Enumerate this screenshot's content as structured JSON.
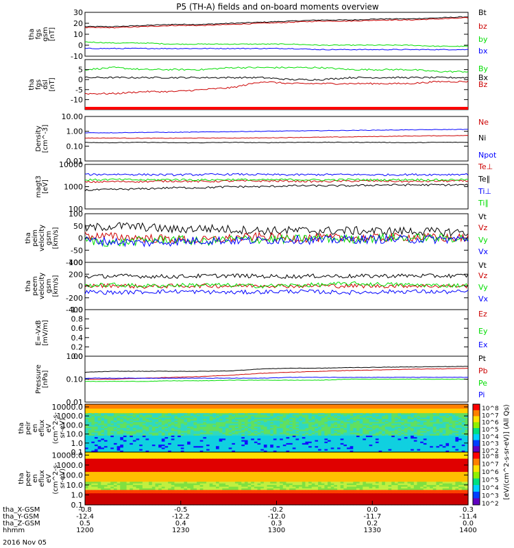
{
  "title": "P5 (TH-A) fields and on-board moments overview",
  "chart_data": [
    {
      "type": "line",
      "panel": "fgs-gsm",
      "ylabel": [
        "tha",
        "fgs",
        "gsm",
        "[nT]"
      ],
      "ylim": [
        -10,
        30
      ],
      "yticks": [
        "30",
        "20",
        "10",
        "0",
        "-10"
      ],
      "series": [
        {
          "name": "Bt",
          "color": "#000000",
          "values": [
            17,
            17,
            18,
            19,
            19,
            20,
            21,
            22,
            23,
            23,
            24,
            24,
            25,
            26
          ]
        },
        {
          "name": "bz",
          "color": "#cc0000",
          "values": [
            16,
            16,
            17,
            18,
            18,
            19,
            20,
            21,
            22,
            22,
            23,
            23,
            24,
            25
          ]
        },
        {
          "name": "by",
          "color": "#00dd00",
          "values": [
            3,
            2,
            2,
            1,
            1,
            1,
            1,
            1,
            0,
            0,
            0,
            0,
            -1,
            -1
          ]
        },
        {
          "name": "bx",
          "color": "#0000ff",
          "values": [
            -3,
            -3,
            -3,
            -3,
            -3,
            -3,
            -3,
            -3,
            -4,
            -4,
            -4,
            -4,
            -4,
            -4
          ]
        }
      ]
    },
    {
      "type": "line",
      "panel": "fgs-dsl",
      "ylabel": [
        "tha",
        "fgs",
        "dsl",
        "[nT]"
      ],
      "ylim": [
        -15,
        10
      ],
      "yticks": [
        "5",
        "0",
        "-5",
        "-10"
      ],
      "series": [
        {
          "name": "By",
          "color": "#00dd00",
          "values": [
            5,
            6,
            5,
            5,
            5,
            6,
            6,
            6,
            6,
            5,
            5,
            5,
            4,
            4
          ]
        },
        {
          "name": "Bx",
          "color": "#000000",
          "values": [
            1,
            1,
            1,
            1,
            1,
            1,
            1,
            0,
            0,
            1,
            1,
            1,
            1,
            1
          ]
        },
        {
          "name": "Bz",
          "color": "#cc0000",
          "values": [
            -7,
            -7,
            -6,
            -6,
            -5,
            -4,
            -1,
            -2,
            -2,
            -2,
            -2,
            -2,
            -1,
            -1
          ]
        }
      ]
    },
    {
      "type": "line",
      "panel": "density",
      "ylabel": [
        "Density",
        "[cm^-3]"
      ],
      "yscale": "log",
      "ylim": [
        0.01,
        10
      ],
      "yticks": [
        "10.00",
        "1.00",
        "0.10",
        "0.01"
      ],
      "series": [
        {
          "name": "Ne",
          "color": "#cc0000",
          "values": [
            0.35,
            0.35,
            0.34,
            0.34,
            0.35,
            0.35,
            0.36,
            0.38,
            0.4,
            0.42,
            0.45,
            0.48,
            0.5,
            0.52
          ]
        },
        {
          "name": "Ni",
          "color": "#000000",
          "values": [
            0.18,
            0.17,
            0.18,
            0.17,
            0.17,
            0.18,
            0.17,
            0.18,
            0.18,
            0.18,
            0.18,
            0.17,
            0.18,
            0.18
          ]
        },
        {
          "name": "Npot",
          "color": "#0000ff",
          "values": [
            0.8,
            0.8,
            0.85,
            0.85,
            0.9,
            0.95,
            1.0,
            1.05,
            1.1,
            1.15,
            1.2,
            1.25,
            1.3,
            1.35
          ]
        }
      ]
    },
    {
      "type": "line",
      "panel": "temperature",
      "ylabel": [
        "magt3",
        "[eV]"
      ],
      "yscale": "log",
      "ylim": [
        100,
        10000
      ],
      "yticks": [
        "10000",
        "1000",
        "100"
      ],
      "series": [
        {
          "name": "Te⊥",
          "color": "#cc0000",
          "values": [
            1600,
            1700,
            1700,
            1800,
            1700,
            1800,
            1800,
            1800,
            1700,
            1800,
            1800,
            1700,
            1800,
            1800
          ]
        },
        {
          "name": "Te∥",
          "color": "#000000",
          "values": [
            700,
            750,
            800,
            900,
            900,
            1000,
            1000,
            1100,
            1100,
            1100,
            1200,
            1200,
            1200,
            1200
          ]
        },
        {
          "name": "Ti⊥",
          "color": "#0000ff",
          "values": [
            3500,
            3600,
            3500,
            3400,
            3500,
            3600,
            3500,
            3400,
            3500,
            3500,
            3400,
            3500,
            3500,
            3600
          ]
        },
        {
          "name": "Ti∥",
          "color": "#00dd00",
          "values": [
            2000,
            2100,
            2000,
            2100,
            2000,
            2100,
            2000,
            2100,
            2000,
            2100,
            2000,
            2100,
            2000,
            2100
          ]
        }
      ]
    },
    {
      "type": "line",
      "panel": "ion-velocity",
      "ylabel": [
        "tha",
        "peim",
        "velocity",
        "gsm",
        "[km/s]"
      ],
      "ylim": [
        -100,
        100
      ],
      "yticks": [
        "100",
        "50",
        "0",
        "-50",
        "-100"
      ],
      "series": [
        {
          "name": "Vt",
          "color": "#000000",
          "values": [
            40,
            50,
            45,
            35,
            40,
            35,
            30,
            30,
            30,
            30,
            28,
            28,
            25,
            25
          ]
        },
        {
          "name": "Vz",
          "color": "#cc0000",
          "values": [
            10,
            5,
            0,
            -5,
            -10,
            0,
            5,
            0,
            0,
            0,
            0,
            5,
            0,
            0
          ]
        },
        {
          "name": "Vy",
          "color": "#00dd00",
          "values": [
            -10,
            -20,
            -10,
            -5,
            -15,
            -5,
            -5,
            -5,
            0,
            -5,
            0,
            0,
            0,
            0
          ]
        },
        {
          "name": "Vx",
          "color": "#0000ff",
          "values": [
            -10,
            -15,
            -20,
            -15,
            -10,
            -10,
            -10,
            -5,
            -10,
            -5,
            -5,
            -5,
            -5,
            -5
          ]
        }
      ]
    },
    {
      "type": "line",
      "panel": "electron-velocity",
      "ylabel": [
        "tha",
        "peem",
        "velocity",
        "gsm",
        "[km/s]"
      ],
      "ylim": [
        -400,
        400
      ],
      "yticks": [
        "400",
        "200",
        "0",
        "-200",
        "-400"
      ],
      "series": [
        {
          "name": "Vt",
          "color": "#000000",
          "values": [
            160,
            170,
            165,
            160,
            170,
            175,
            165,
            160,
            170,
            165,
            170,
            175,
            170,
            175
          ]
        },
        {
          "name": "Vz",
          "color": "#cc0000",
          "values": [
            0,
            10,
            -10,
            0,
            5,
            0,
            10,
            0,
            5,
            0,
            0,
            5,
            0,
            0
          ]
        },
        {
          "name": "Vy",
          "color": "#00dd00",
          "values": [
            10,
            20,
            0,
            10,
            20,
            10,
            0,
            10,
            20,
            40,
            30,
            20,
            10,
            10
          ]
        },
        {
          "name": "Vx",
          "color": "#0000ff",
          "values": [
            -100,
            -110,
            -100,
            -90,
            -100,
            -110,
            -100,
            -90,
            -100,
            -110,
            -100,
            -90,
            -100,
            -100
          ]
        }
      ]
    },
    {
      "type": "line",
      "panel": "efield",
      "ylabel": [
        "E=-VxB",
        "[mV/m]"
      ],
      "ylim": [
        0,
        1
      ],
      "yticks": [
        "1.0",
        "0.8",
        "0.6",
        "0.4",
        "0.2",
        "0.0"
      ],
      "series": [
        {
          "name": "Ez",
          "color": "#cc0000",
          "values": []
        },
        {
          "name": "Ey",
          "color": "#00dd00",
          "values": []
        },
        {
          "name": "Ex",
          "color": "#0000ff",
          "values": []
        }
      ]
    },
    {
      "type": "line",
      "panel": "pressure",
      "ylabel": [
        "Pressure",
        "[nPa]"
      ],
      "yscale": "log",
      "ylim": [
        0.01,
        1
      ],
      "yticks": [
        "1.00",
        "0.10",
        "0.01"
      ],
      "series": [
        {
          "name": "Pt",
          "color": "#000000",
          "values": [
            0.2,
            0.22,
            0.22,
            0.22,
            0.22,
            0.23,
            0.28,
            0.3,
            0.3,
            0.32,
            0.33,
            0.34,
            0.35,
            0.36
          ]
        },
        {
          "name": "Pb",
          "color": "#cc0000",
          "values": [
            0.1,
            0.1,
            0.11,
            0.12,
            0.13,
            0.15,
            0.18,
            0.2,
            0.22,
            0.24,
            0.25,
            0.27,
            0.28,
            0.3
          ]
        },
        {
          "name": "Pe",
          "color": "#00dd00",
          "values": [
            0.08,
            0.08,
            0.08,
            0.085,
            0.085,
            0.09,
            0.09,
            0.09,
            0.09,
            0.1,
            0.1,
            0.1,
            0.1,
            0.1
          ]
        },
        {
          "name": "Pi",
          "color": "#0000ff",
          "values": [
            0.11,
            0.11,
            0.11,
            0.11,
            0.11,
            0.11,
            0.11,
            0.12,
            0.12,
            0.12,
            0.12,
            0.12,
            0.12,
            0.12
          ]
        }
      ]
    },
    {
      "type": "heatmap",
      "panel": "ion-spectrogram",
      "ylabel": [
        "tha",
        "peir",
        "en",
        "eflux",
        "eV",
        "(cm^2-s-",
        "sr-eV)"
      ],
      "yscale": "log",
      "ylim": [
        0.1,
        20000
      ],
      "yticks": [
        "10000.0",
        "1000.0",
        "100.0",
        "10.0",
        "1.0",
        "0.1"
      ]
    },
    {
      "type": "heatmap",
      "panel": "electron-spectrogram",
      "ylabel": [
        "tha",
        "peer",
        "en",
        "eflux",
        "eV",
        "(cm^2-s-",
        "sr-eV)"
      ],
      "yscale": "log",
      "ylim": [
        0.1,
        20000
      ],
      "yticks": [
        "10000.0",
        "1000.0",
        "100.0",
        "10.0",
        "1.0",
        "0.1"
      ]
    }
  ],
  "colorbar": {
    "label": "[eV/(cm^2-s-sr-eV)] (All Qs)",
    "ion_ticks": [
      "10^8",
      "10^7",
      "10^6",
      "10^5",
      "10^4",
      "10^3",
      "10^2"
    ],
    "electron_ticks": [
      "10^8",
      "10^7",
      "10^6",
      "10^5",
      "10^4",
      "10^3",
      "10^2"
    ]
  },
  "x_axis": {
    "rows": [
      {
        "label": "tha_X-GSM",
        "values": [
          "-0.8",
          "-0.5",
          "-0.2",
          "0.0",
          "0.3"
        ]
      },
      {
        "label": "tha_Y-GSM",
        "values": [
          "-12.4",
          "-12.2",
          "-12.0",
          "-11.7",
          "-11.4"
        ]
      },
      {
        "label": "tha_Z-GSM",
        "values": [
          "0.5",
          "0.4",
          "0.3",
          "0.2",
          "0.0"
        ]
      },
      {
        "label": "hhmm",
        "values": [
          "1200",
          "1230",
          "1300",
          "1330",
          "1400"
        ]
      }
    ],
    "date": "2016 Nov 05"
  }
}
